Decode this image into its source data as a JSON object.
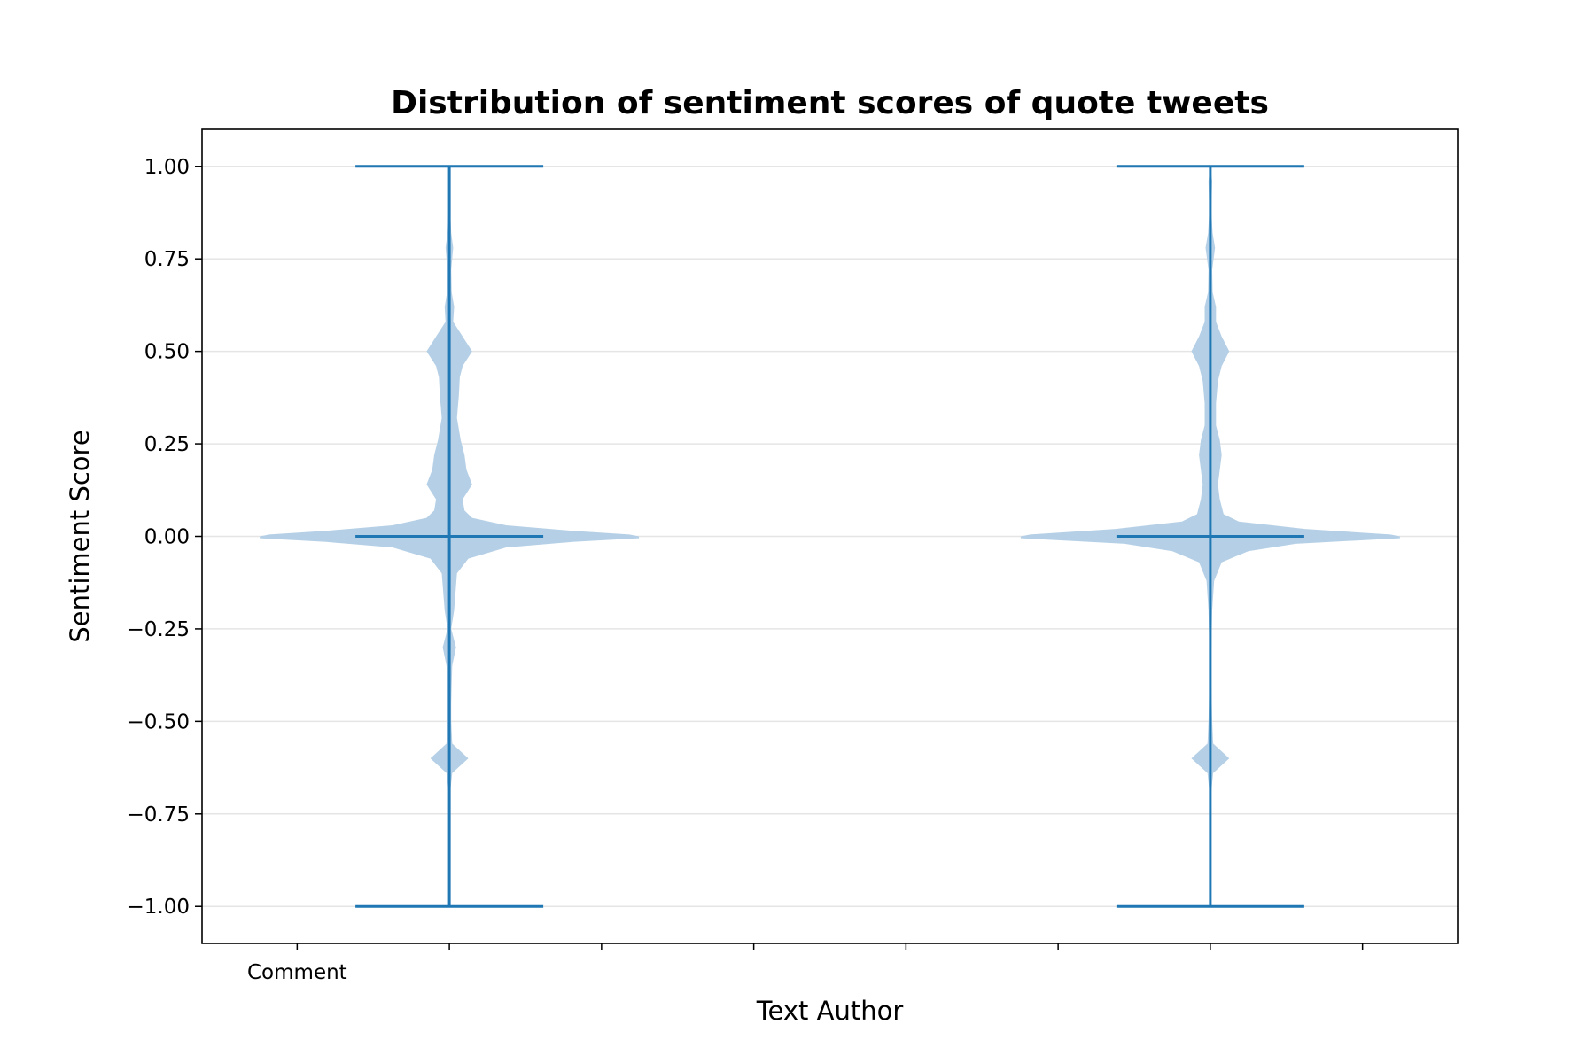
{
  "chart_data": {
    "type": "violin",
    "title": "Distribution of sentiment scores of quote tweets",
    "xlabel": "Text Author",
    "ylabel": "Sentiment Score",
    "ylim": [
      -1.1,
      1.1
    ],
    "xlim": [
      -0.625,
      7.625
    ],
    "yticks": [
      -1.0,
      -0.75,
      -0.5,
      -0.25,
      0.0,
      0.25,
      0.5,
      0.75,
      1.0
    ],
    "ytick_labels": [
      "−1.00",
      "−0.75",
      "−0.50",
      "−0.25",
      "0.00",
      "0.25",
      "0.50",
      "0.75",
      "1.00"
    ],
    "xticks": [
      0,
      1,
      2,
      3,
      4,
      5,
      6,
      7
    ],
    "xtick_labels": [
      "Comment",
      "",
      "",
      "",
      "",
      "",
      "",
      ""
    ],
    "grid": "horizontal",
    "colors": {
      "line": "#1f77b4",
      "fill": "#b5d0e6",
      "grid": "#e5e5e5"
    },
    "violins": [
      {
        "position": 1,
        "min": -1.0,
        "max": 1.0,
        "median": 0.0,
        "density": [
          [
            -1.0,
            0.0
          ],
          [
            -0.7,
            0.003
          ],
          [
            -0.64,
            0.015
          ],
          [
            -0.6,
            0.1
          ],
          [
            -0.56,
            0.015
          ],
          [
            -0.5,
            0.01
          ],
          [
            -0.45,
            0.01
          ],
          [
            -0.35,
            0.015
          ],
          [
            -0.3,
            0.035
          ],
          [
            -0.25,
            0.01
          ],
          [
            -0.2,
            0.025
          ],
          [
            -0.1,
            0.04
          ],
          [
            -0.06,
            0.1
          ],
          [
            -0.03,
            0.3
          ],
          [
            -0.015,
            0.65
          ],
          [
            -0.005,
            1.0
          ],
          [
            0.0,
            1.0
          ],
          [
            0.005,
            0.95
          ],
          [
            0.015,
            0.65
          ],
          [
            0.03,
            0.3
          ],
          [
            0.05,
            0.12
          ],
          [
            0.07,
            0.08
          ],
          [
            0.1,
            0.07
          ],
          [
            0.14,
            0.12
          ],
          [
            0.18,
            0.09
          ],
          [
            0.22,
            0.08
          ],
          [
            0.26,
            0.06
          ],
          [
            0.32,
            0.04
          ],
          [
            0.38,
            0.05
          ],
          [
            0.43,
            0.055
          ],
          [
            0.46,
            0.07
          ],
          [
            0.5,
            0.12
          ],
          [
            0.54,
            0.07
          ],
          [
            0.58,
            0.02
          ],
          [
            0.62,
            0.025
          ],
          [
            0.66,
            0.012
          ],
          [
            0.72,
            0.01
          ],
          [
            0.78,
            0.02
          ],
          [
            0.82,
            0.01
          ],
          [
            0.9,
            0.003
          ],
          [
            1.0,
            0.0
          ]
        ]
      },
      {
        "position": 6,
        "min": -1.0,
        "max": 1.0,
        "median": 0.0,
        "density": [
          [
            -1.0,
            0.0
          ],
          [
            -0.7,
            0.003
          ],
          [
            -0.64,
            0.015
          ],
          [
            -0.6,
            0.1
          ],
          [
            -0.56,
            0.015
          ],
          [
            -0.5,
            0.01
          ],
          [
            -0.4,
            0.005
          ],
          [
            -0.3,
            0.005
          ],
          [
            -0.2,
            0.01
          ],
          [
            -0.12,
            0.02
          ],
          [
            -0.07,
            0.06
          ],
          [
            -0.04,
            0.2
          ],
          [
            -0.02,
            0.45
          ],
          [
            -0.005,
            1.0
          ],
          [
            0.0,
            1.0
          ],
          [
            0.005,
            0.95
          ],
          [
            0.02,
            0.5
          ],
          [
            0.04,
            0.15
          ],
          [
            0.06,
            0.07
          ],
          [
            0.1,
            0.05
          ],
          [
            0.14,
            0.04
          ],
          [
            0.18,
            0.05
          ],
          [
            0.22,
            0.06
          ],
          [
            0.26,
            0.05
          ],
          [
            0.3,
            0.03
          ],
          [
            0.36,
            0.03
          ],
          [
            0.42,
            0.04
          ],
          [
            0.46,
            0.06
          ],
          [
            0.5,
            0.1
          ],
          [
            0.54,
            0.06
          ],
          [
            0.58,
            0.03
          ],
          [
            0.62,
            0.03
          ],
          [
            0.66,
            0.012
          ],
          [
            0.72,
            0.01
          ],
          [
            0.78,
            0.025
          ],
          [
            0.82,
            0.012
          ],
          [
            0.88,
            0.005
          ],
          [
            0.96,
            0.01
          ],
          [
            1.0,
            0.0
          ]
        ]
      }
    ]
  }
}
